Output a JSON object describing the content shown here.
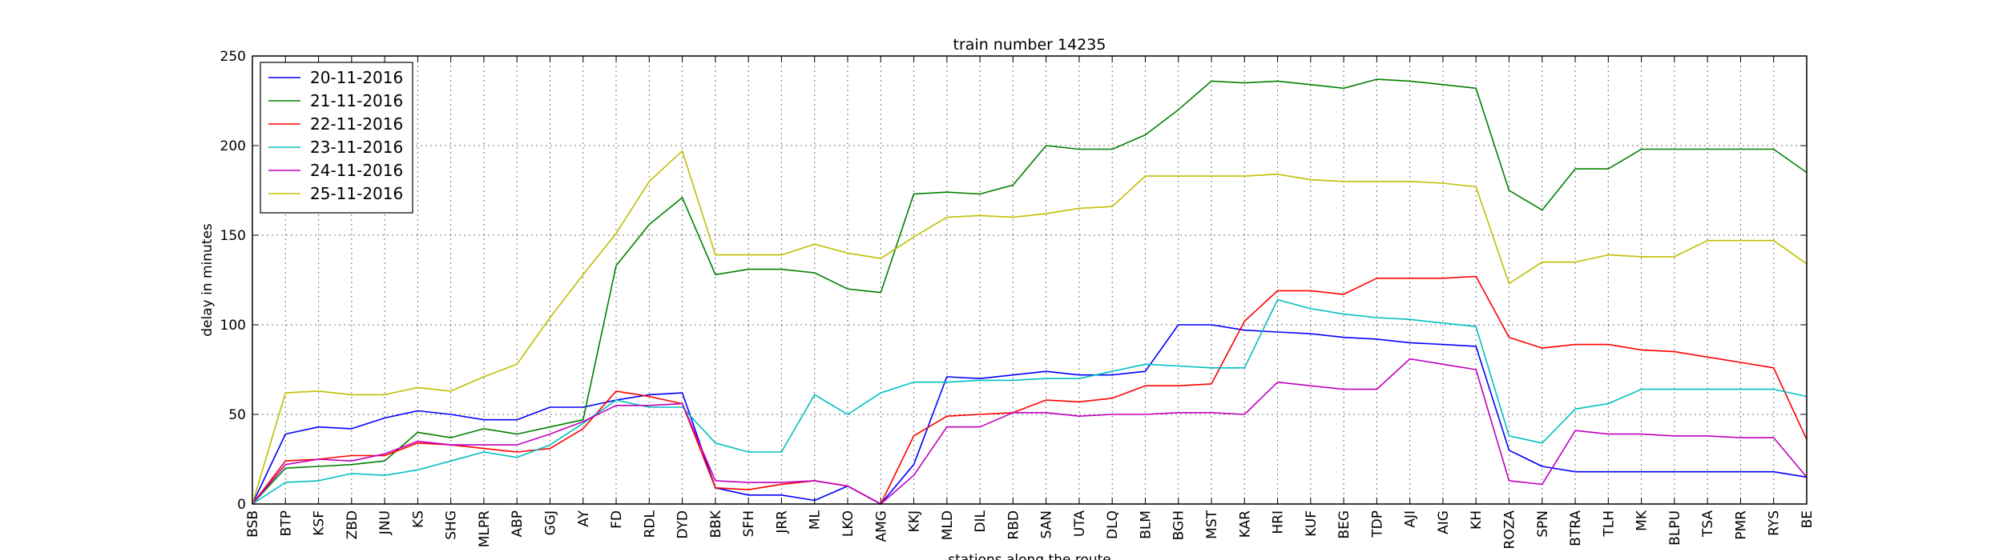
{
  "chart_data": {
    "type": "line",
    "title": "train number 14235",
    "xlabel": "stations along the route",
    "ylabel": "delay in minutes",
    "ylim": [
      0,
      250
    ],
    "yticks": [
      0,
      50,
      100,
      150,
      200,
      250
    ],
    "grid": true,
    "legend_position": "top-left",
    "categories": [
      "BSB",
      "BTP",
      "KSF",
      "ZBD",
      "JNU",
      "KS",
      "SHG",
      "MLPR",
      "ABP",
      "GGJ",
      "AY",
      "FD",
      "RDL",
      "DYD",
      "BBK",
      "SFH",
      "JRR",
      "ML",
      "LKO",
      "AMG",
      "KKJ",
      "MLD",
      "DIL",
      "RBD",
      "SAN",
      "UTA",
      "DLQ",
      "BLM",
      "BGH",
      "MST",
      "KAR",
      "HRI",
      "KUF",
      "BEG",
      "TDP",
      "AJI",
      "AIG",
      "KH",
      "ROZA",
      "SPN",
      "BTRA",
      "TLH",
      "MK",
      "BLPU",
      "TSA",
      "PMR",
      "RYS",
      "BE"
    ],
    "series": [
      {
        "name": "20-11-2016",
        "color": "#0000ff",
        "values": [
          0,
          39,
          43,
          42,
          48,
          52,
          50,
          47,
          47,
          54,
          54,
          58,
          61,
          62,
          9,
          5,
          5,
          2,
          10,
          0,
          22,
          71,
          70,
          72,
          74,
          72,
          72,
          74,
          100,
          100,
          97,
          96,
          95,
          93,
          92,
          90,
          89,
          88,
          30,
          21,
          18,
          18,
          18,
          18,
          18,
          18,
          18,
          15
        ]
      },
      {
        "name": "21-11-2016",
        "color": "#008000",
        "values": [
          0,
          20,
          21,
          22,
          24,
          40,
          37,
          42,
          39,
          43,
          47,
          133,
          156,
          171,
          128,
          131,
          131,
          129,
          120,
          118,
          173,
          174,
          173,
          178,
          200,
          198,
          198,
          206,
          220,
          236,
          235,
          236,
          234,
          232,
          237,
          236,
          234,
          232,
          175,
          164,
          187,
          187,
          198,
          198,
          198,
          198,
          198,
          185
        ]
      },
      {
        "name": "22-11-2016",
        "color": "#ff0000",
        "values": [
          0,
          24,
          25,
          27,
          27,
          34,
          33,
          31,
          29,
          31,
          42,
          63,
          60,
          56,
          9,
          8,
          11,
          13,
          10,
          0,
          38,
          49,
          50,
          51,
          58,
          57,
          59,
          66,
          66,
          67,
          102,
          119,
          119,
          117,
          126,
          126,
          126,
          127,
          93,
          87,
          89,
          89,
          86,
          85,
          82,
          79,
          76,
          36
        ]
      },
      {
        "name": "23-11-2016",
        "color": "#00bfbf",
        "values": [
          0,
          12,
          13,
          17,
          16,
          19,
          24,
          29,
          26,
          33,
          45,
          58,
          54,
          54,
          34,
          29,
          29,
          61,
          50,
          62,
          68,
          68,
          69,
          69,
          70,
          70,
          74,
          78,
          77,
          76,
          76,
          114,
          109,
          106,
          104,
          103,
          101,
          99,
          38,
          34,
          53,
          56,
          64,
          64,
          64,
          64,
          64,
          60
        ]
      },
      {
        "name": "24-11-2016",
        "color": "#bf00bf",
        "values": [
          0,
          22,
          25,
          24,
          28,
          35,
          33,
          33,
          33,
          39,
          46,
          55,
          55,
          56,
          13,
          12,
          12,
          13,
          10,
          0,
          16,
          43,
          43,
          51,
          51,
          49,
          50,
          50,
          51,
          51,
          50,
          68,
          66,
          64,
          64,
          81,
          78,
          75,
          13,
          11,
          41,
          39,
          39,
          38,
          38,
          37,
          37,
          15
        ]
      },
      {
        "name": "25-11-2016",
        "color": "#bfbf00",
        "values": [
          0,
          62,
          63,
          61,
          61,
          65,
          63,
          71,
          78,
          104,
          128,
          151,
          180,
          197,
          139,
          139,
          139,
          145,
          140,
          137,
          149,
          160,
          161,
          160,
          162,
          165,
          166,
          183,
          183,
          183,
          183,
          184,
          181,
          180,
          180,
          180,
          179,
          177,
          123,
          135,
          135,
          139,
          138,
          138,
          147,
          147,
          147,
          134
        ]
      }
    ]
  }
}
